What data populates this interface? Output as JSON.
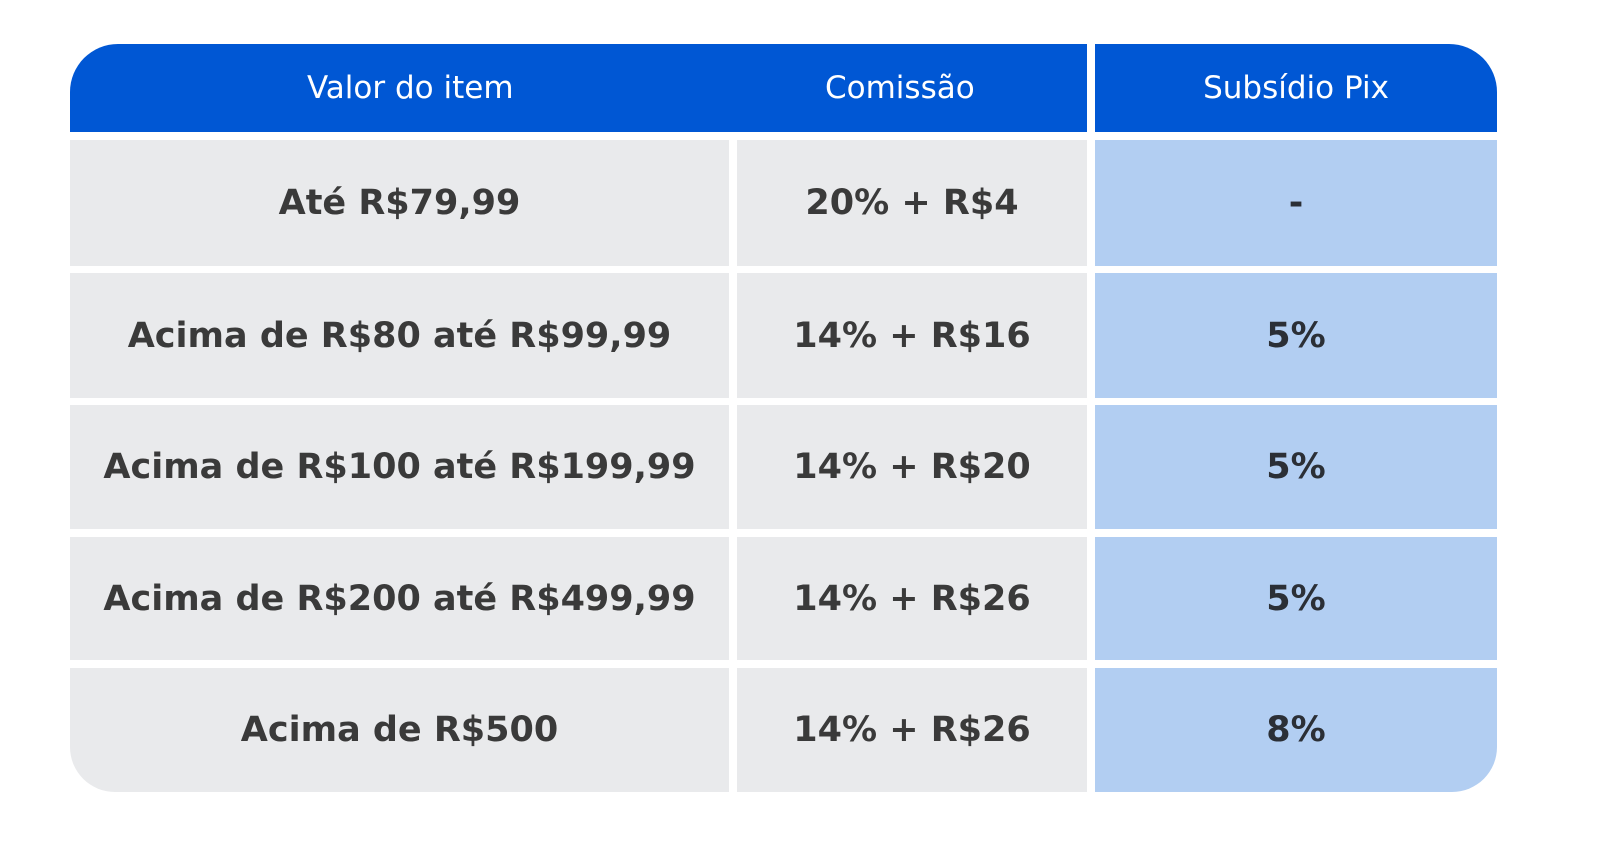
{
  "colors": {
    "header": "#0057d4",
    "row": "#e9eaec",
    "pix_column": "#b2cef2"
  },
  "header": {
    "valor": "Valor do item",
    "comissao": "Comissão",
    "subsidio": "Subsídio Pix"
  },
  "rows": [
    {
      "valor": "Até R$79,99",
      "comissao": "20% + R$4",
      "subsidio": "-"
    },
    {
      "valor": "Acima de R$80 até R$99,99",
      "comissao": "14% + R$16",
      "subsidio": "5%"
    },
    {
      "valor": "Acima de R$100 até R$199,99",
      "comissao": "14% + R$20",
      "subsidio": "5%"
    },
    {
      "valor": "Acima de R$200 até R$499,99",
      "comissao": "14% + R$26",
      "subsidio": "5%"
    },
    {
      "valor": "Acima de R$500",
      "comissao": "14% + R$26",
      "subsidio": "8%"
    }
  ]
}
